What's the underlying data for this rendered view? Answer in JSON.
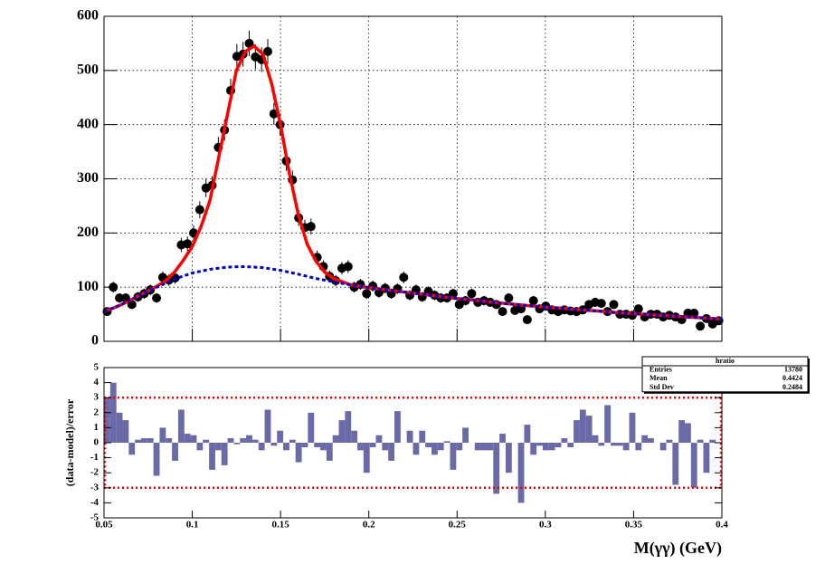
{
  "chart_data": [
    {
      "type": "scatter",
      "xlim": [
        0.05,
        0.4
      ],
      "ylim": [
        0,
        600
      ],
      "xticks": [
        0.05,
        0.1,
        0.15,
        0.2,
        0.25,
        0.3,
        0.35,
        0.4
      ],
      "show_xtick_labels": false,
      "yticks": [
        0,
        100,
        200,
        300,
        400,
        500,
        600
      ],
      "grid": true,
      "series": [
        {
          "type": "points",
          "color": "#000000",
          "x": [
            0.05175,
            0.05525,
            0.05875,
            0.06225,
            0.06575,
            0.06925,
            0.07275,
            0.07625,
            0.07975,
            0.08325,
            0.08675,
            0.09025,
            0.09375,
            0.09725,
            0.10075,
            0.10425,
            0.10775,
            0.11125,
            0.11475,
            0.11825,
            0.12175,
            0.12525,
            0.12875,
            0.13225,
            0.13575,
            0.13925,
            0.14275,
            0.14625,
            0.14975,
            0.15325,
            0.15675,
            0.16025,
            0.16375,
            0.16725,
            0.17075,
            0.17425,
            0.17775,
            0.18125,
            0.18475,
            0.18825,
            0.19175,
            0.19525,
            0.19875,
            0.20225,
            0.20575,
            0.20925,
            0.21275,
            0.21625,
            0.21975,
            0.22325,
            0.22675,
            0.23025,
            0.23375,
            0.23725,
            0.24075,
            0.24425,
            0.24775,
            0.25125,
            0.25475,
            0.25825,
            0.26175,
            0.26525,
            0.26875,
            0.27225,
            0.27575,
            0.27925,
            0.28275,
            0.28625,
            0.28975,
            0.29325,
            0.29675,
            0.30025,
            0.30375,
            0.30725,
            0.31075,
            0.31425,
            0.31775,
            0.32125,
            0.32475,
            0.32825,
            0.33175,
            0.33525,
            0.33875,
            0.34225,
            0.34575,
            0.34925,
            0.35275,
            0.35625,
            0.35975,
            0.36325,
            0.36675,
            0.37025,
            0.37375,
            0.37725,
            0.38075,
            0.38425,
            0.38775,
            0.39125,
            0.39475,
            0.39825
          ],
          "values": [
            55,
            100,
            80,
            80,
            68,
            82,
            88,
            95,
            80,
            118,
            113,
            117,
            178,
            180,
            200,
            243,
            283,
            288,
            358,
            390,
            463,
            526,
            530,
            550,
            525,
            520,
            535,
            420,
            400,
            333,
            298,
            228,
            210,
            212,
            155,
            138,
            120,
            112,
            135,
            138,
            100,
            105,
            88,
            102,
            90,
            98,
            88,
            97,
            118,
            85,
            95,
            82,
            92,
            85,
            80,
            80,
            88,
            68,
            75,
            88,
            72,
            75,
            72,
            68,
            55,
            80,
            57,
            60,
            40,
            75,
            60,
            65,
            58,
            55,
            58,
            56,
            55,
            58,
            68,
            72,
            70,
            55,
            68,
            50,
            50,
            48,
            60,
            45,
            50,
            50,
            45,
            48,
            45,
            40,
            52,
            52,
            28,
            42,
            32,
            38
          ],
          "errors": [
            7.4,
            10,
            8.9,
            8.9,
            8.2,
            9.1,
            9.4,
            9.7,
            8.9,
            10.9,
            10.6,
            10.8,
            13.3,
            13.4,
            14.1,
            15.6,
            16.8,
            17,
            18.9,
            19.7,
            21.5,
            22.9,
            23,
            23.5,
            22.9,
            22.8,
            23.1,
            20.5,
            20,
            18.2,
            17.3,
            15.1,
            14.5,
            14.6,
            12.4,
            11.7,
            11,
            10.6,
            11.6,
            11.7,
            10,
            10.2,
            9.4,
            10.1,
            9.5,
            9.9,
            9.4,
            9.8,
            10.9,
            9.2,
            9.7,
            9.1,
            9.6,
            9.2,
            8.9,
            8.9,
            9.4,
            8.2,
            8.7,
            9.4,
            8.5,
            8.7,
            8.5,
            8.2,
            7.4,
            8.9,
            7.5,
            7.7,
            6.3,
            8.7,
            7.7,
            8.1,
            7.6,
            7.4,
            7.6,
            7.5,
            7.4,
            7.6,
            8.2,
            8.5,
            8.4,
            7.4,
            8.2,
            7.1,
            7.1,
            6.9,
            7.7,
            6.7,
            7.1,
            7.1,
            6.7,
            6.9,
            6.7,
            6.3,
            7.2,
            7.2,
            5.3,
            6.5,
            5.7,
            6.2
          ]
        },
        {
          "type": "line",
          "color": "#ff0000",
          "x": [
            0.05,
            0.055,
            0.06,
            0.065,
            0.07,
            0.075,
            0.08,
            0.085,
            0.09,
            0.095,
            0.1,
            0.105,
            0.11,
            0.115,
            0.12,
            0.125,
            0.13,
            0.135,
            0.14,
            0.145,
            0.15,
            0.155,
            0.16,
            0.165,
            0.17,
            0.175,
            0.18,
            0.19,
            0.2,
            0.21,
            0.22,
            0.23,
            0.24,
            0.25,
            0.26,
            0.27,
            0.28,
            0.29,
            0.3,
            0.31,
            0.32,
            0.33,
            0.34,
            0.35,
            0.36,
            0.37,
            0.38,
            0.39,
            0.4
          ],
          "values": [
            55,
            61,
            68,
            76,
            85,
            93,
            102,
            112,
            128,
            150,
            175,
            212,
            260,
            340,
            420,
            500,
            535,
            545,
            530,
            475,
            400,
            310,
            235,
            180,
            148,
            128,
            116,
            104,
            99,
            95,
            91,
            87,
            83,
            79,
            76,
            72,
            69,
            66,
            63,
            61,
            58,
            56,
            53,
            51,
            49,
            47,
            45,
            43,
            41
          ]
        },
        {
          "type": "line",
          "color": "#0000cc",
          "dashed": true,
          "x": [
            0.05,
            0.06,
            0.07,
            0.08,
            0.09,
            0.1,
            0.11,
            0.12,
            0.13,
            0.14,
            0.15,
            0.16,
            0.17,
            0.18,
            0.19,
            0.2,
            0.21,
            0.22,
            0.23,
            0.24,
            0.25,
            0.26,
            0.27,
            0.28,
            0.29,
            0.3,
            0.31,
            0.32,
            0.33,
            0.34,
            0.35,
            0.36,
            0.37,
            0.38,
            0.39,
            0.4
          ],
          "values": [
            55,
            68,
            85,
            100,
            115,
            126,
            133,
            137,
            138,
            136,
            131,
            124,
            116,
            110,
            104,
            99,
            95,
            91,
            87,
            83,
            79,
            76,
            72,
            69,
            66,
            63,
            61,
            58,
            56,
            53,
            51,
            49,
            47,
            45,
            43,
            41
          ]
        }
      ]
    },
    {
      "type": "histogram",
      "xlabel": "M(γγ) (GeV)",
      "ylabel": "(data-model)/error",
      "color": "#6a6aa8",
      "xlim": [
        0.05,
        0.4
      ],
      "ylim": [
        -5,
        5
      ],
      "xticks": [
        0.05,
        0.1,
        0.15,
        0.2,
        0.25,
        0.3,
        0.35,
        0.4
      ],
      "show_xtick_labels": true,
      "yticks": [
        -5,
        -4,
        -3,
        -2,
        -1,
        0,
        1,
        2,
        3,
        4,
        5
      ],
      "grid": false,
      "bins": [
        0.05,
        0.0535,
        0.057,
        0.0605,
        0.064,
        0.0675,
        0.071,
        0.0745,
        0.078,
        0.0815,
        0.085,
        0.0885,
        0.092,
        0.0955,
        0.099,
        0.1025,
        0.106,
        0.1095,
        0.113,
        0.1165,
        0.12,
        0.1235,
        0.127,
        0.1305,
        0.134,
        0.1375,
        0.141,
        0.1445,
        0.148,
        0.1515,
        0.155,
        0.1585,
        0.162,
        0.1655,
        0.169,
        0.1725,
        0.176,
        0.1795,
        0.183,
        0.1865,
        0.19,
        0.1935,
        0.197,
        0.2005,
        0.204,
        0.2075,
        0.211,
        0.2145,
        0.218,
        0.2215,
        0.225,
        0.2285,
        0.232,
        0.2355,
        0.239,
        0.2425,
        0.246,
        0.2495,
        0.253,
        0.2565,
        0.26,
        0.2635,
        0.267,
        0.2705,
        0.274,
        0.2775,
        0.281,
        0.2845,
        0.288,
        0.2915,
        0.295,
        0.2985,
        0.302,
        0.3055,
        0.309,
        0.3125,
        0.316,
        0.3195,
        0.323,
        0.3265,
        0.33,
        0.3335,
        0.337,
        0.3405,
        0.344,
        0.3475,
        0.351,
        0.3545,
        0.358,
        0.3615,
        0.365,
        0.3685,
        0.372,
        0.3755,
        0.379,
        0.3825,
        0.386,
        0.3895,
        0.393,
        0.3965,
        0.4
      ],
      "values": [
        3.0,
        4.0,
        2.0,
        1.5,
        -0.8,
        0.2,
        0.3,
        0.3,
        -2.2,
        1.0,
        0.3,
        -1.2,
        2.2,
        0.6,
        0.5,
        -0.5,
        0.2,
        -1.8,
        -0.5,
        -1.5,
        0.3,
        -0.1,
        0.3,
        0.5,
        0.2,
        -0.5,
        2.2,
        -0.2,
        0.8,
        -0.5,
        0.2,
        -1.3,
        -0.3,
        2.0,
        -0.3,
        -0.5,
        -1.2,
        0.5,
        1.5,
        2.1,
        0.8,
        -0.5,
        -2.0,
        -0.3,
        0.5,
        -0.5,
        -1.2,
        2.1,
        0.0,
        0.8,
        -0.8,
        0.8,
        -0.3,
        -0.8,
        -0.5,
        0.1,
        -1.8,
        -0.5,
        1.0,
        0.0,
        -0.5,
        -0.5,
        -0.5,
        -3.4,
        0.6,
        -2.0,
        0.0,
        -4.0,
        1.2,
        -0.8,
        -0.2,
        -0.5,
        -0.5,
        -0.3,
        0.3,
        -0.3,
        1.5,
        2.2,
        1.8,
        0.5,
        -0.2,
        2.5,
        -0.2,
        -0.2,
        -0.5,
        2.0,
        -0.5,
        0.5,
        0.3,
        0.0,
        -0.5,
        0.2,
        -2.8,
        1.5,
        1.3,
        -3.0,
        0.2,
        -2.0,
        0.2,
        0.0
      ],
      "reference_lines": {
        "values": [
          3,
          -3
        ],
        "color": "#ff0000"
      },
      "stats_box": {
        "title": "hratio",
        "rows": [
          {
            "label": "Entries",
            "value": "13780"
          },
          {
            "label": "Mean",
            "value": "0.4424"
          },
          {
            "label": "Std Dev",
            "value": "0.2484"
          }
        ]
      }
    }
  ]
}
